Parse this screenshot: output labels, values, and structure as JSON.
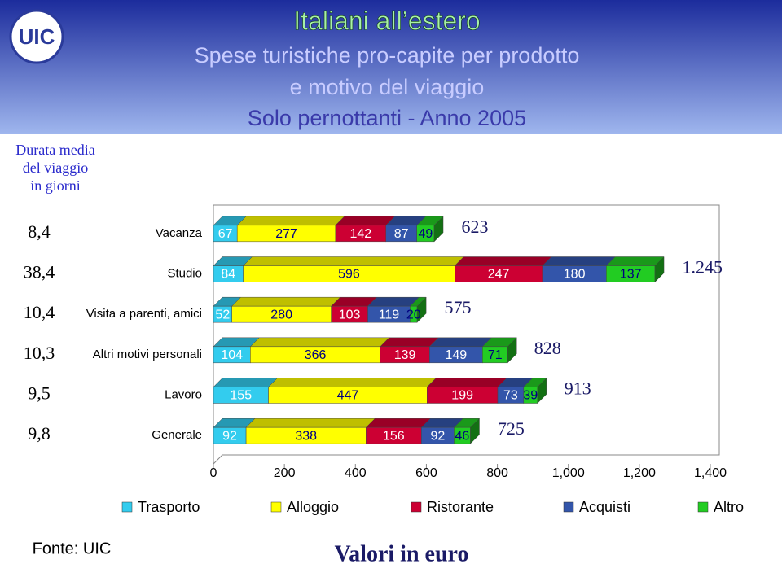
{
  "logo": "UIC",
  "duration_title": [
    "Durata media",
    "del viaggio",
    "in giorni"
  ],
  "footer": {
    "source": "Fonte: UIC",
    "units": "Valori in euro"
  },
  "chart_data": {
    "type": "stacked-bar-3d",
    "title": "Italiani all’estero",
    "subtitle": [
      "Spese turistiche pro-capite per prodotto",
      "e motivo del viaggio",
      "Solo pernottanti - Anno 2005"
    ],
    "categories": [
      "Vacanza",
      "Studio",
      "Visita a parenti, amici",
      "Altri motivi personali",
      "Lavoro",
      "Generale"
    ],
    "series": [
      {
        "name": "Trasporto",
        "color": "#33ccee",
        "values": [
          67,
          84,
          52,
          104,
          155,
          92
        ]
      },
      {
        "name": "Alloggio",
        "color": "#ffff00",
        "values": [
          277,
          596,
          280,
          366,
          447,
          338
        ]
      },
      {
        "name": "Ristorante",
        "color": "#cc0033",
        "values": [
          142,
          247,
          103,
          139,
          199,
          156
        ]
      },
      {
        "name": "Acquisti",
        "color": "#3355aa",
        "values": [
          87,
          180,
          119,
          149,
          73,
          92
        ]
      },
      {
        "name": "Altro",
        "color": "#22cc22",
        "values": [
          49,
          137,
          20,
          71,
          39,
          46
        ]
      }
    ],
    "totals": {
      "values": [
        623,
        1245,
        575,
        828,
        913,
        725
      ],
      "value_labels": [
        "623",
        "1.245",
        "575",
        "828",
        "913",
        "725"
      ]
    },
    "durations": {
      "values": [
        8.4,
        38.4,
        10.4,
        10.3,
        9.5,
        9.8
      ],
      "value_labels": [
        "8,4",
        "38,4",
        "10,4",
        "10,3",
        "9,5",
        "9,8"
      ]
    },
    "xlim": [
      0,
      1400
    ],
    "xticks": [
      0,
      200,
      400,
      600,
      800,
      {
        "value": 1000,
        "label": "1,000"
      },
      {
        "value": 1200,
        "label": "1,200"
      },
      {
        "value": 1400,
        "label": "1,400"
      }
    ],
    "legend": "bottom"
  }
}
